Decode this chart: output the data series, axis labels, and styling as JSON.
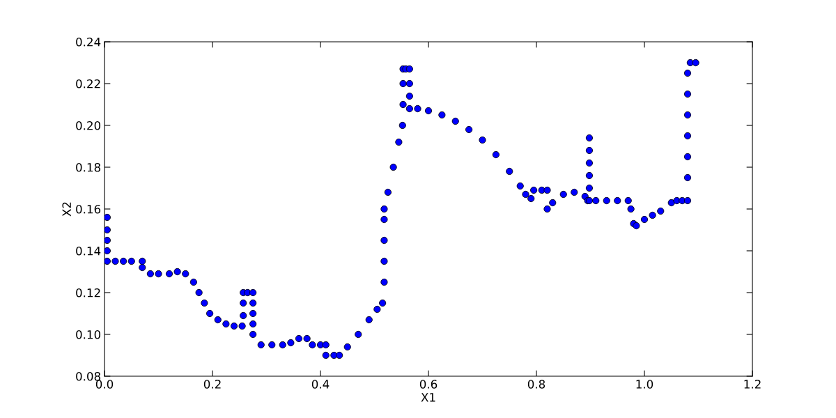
{
  "chart_data": {
    "type": "scatter",
    "xlabel": "X1",
    "ylabel": "X2",
    "x": [
      0.005,
      0.005,
      0.005,
      0.005,
      0.005,
      0.02,
      0.035,
      0.05,
      0.07,
      0.07,
      0.085,
      0.1,
      0.12,
      0.135,
      0.15,
      0.165,
      0.175,
      0.185,
      0.195,
      0.21,
      0.225,
      0.24,
      0.255,
      0.257,
      0.257,
      0.257,
      0.265,
      0.275,
      0.275,
      0.275,
      0.275,
      0.275,
      0.29,
      0.31,
      0.33,
      0.345,
      0.36,
      0.375,
      0.385,
      0.4,
      0.41,
      0.41,
      0.425,
      0.435,
      0.45,
      0.47,
      0.49,
      0.505,
      0.515,
      0.518,
      0.518,
      0.518,
      0.518,
      0.518,
      0.525,
      0.535,
      0.545,
      0.552,
      0.553,
      0.553,
      0.553,
      0.558,
      0.565,
      0.565,
      0.565,
      0.565,
      0.58,
      0.6,
      0.625,
      0.65,
      0.675,
      0.7,
      0.725,
      0.75,
      0.77,
      0.78,
      0.79,
      0.795,
      0.81,
      0.82,
      0.82,
      0.83,
      0.85,
      0.87,
      0.89,
      0.895,
      0.898,
      0.898,
      0.898,
      0.898,
      0.898,
      0.898,
      0.91,
      0.93,
      0.95,
      0.97,
      0.975,
      0.98,
      0.985,
      1.0,
      1.015,
      1.03,
      1.05,
      1.06,
      1.07,
      1.08,
      1.08,
      1.08,
      1.08,
      1.08,
      1.08,
      1.08,
      1.085,
      1.095
    ],
    "values": [
      0.156,
      0.15,
      0.145,
      0.14,
      0.135,
      0.135,
      0.135,
      0.135,
      0.135,
      0.132,
      0.129,
      0.129,
      0.129,
      0.13,
      0.129,
      0.125,
      0.12,
      0.115,
      0.11,
      0.107,
      0.105,
      0.104,
      0.104,
      0.109,
      0.115,
      0.12,
      0.12,
      0.12,
      0.115,
      0.11,
      0.105,
      0.1,
      0.095,
      0.095,
      0.095,
      0.096,
      0.098,
      0.098,
      0.095,
      0.095,
      0.095,
      0.09,
      0.09,
      0.09,
      0.094,
      0.1,
      0.107,
      0.112,
      0.115,
      0.125,
      0.135,
      0.145,
      0.155,
      0.16,
      0.168,
      0.18,
      0.192,
      0.2,
      0.21,
      0.22,
      0.227,
      0.227,
      0.227,
      0.22,
      0.214,
      0.208,
      0.208,
      0.207,
      0.205,
      0.202,
      0.198,
      0.193,
      0.186,
      0.178,
      0.171,
      0.167,
      0.165,
      0.169,
      0.169,
      0.169,
      0.16,
      0.163,
      0.167,
      0.168,
      0.166,
      0.164,
      0.17,
      0.176,
      0.182,
      0.188,
      0.194,
      0.164,
      0.164,
      0.164,
      0.164,
      0.164,
      0.16,
      0.153,
      0.152,
      0.155,
      0.157,
      0.159,
      0.163,
      0.164,
      0.164,
      0.164,
      0.175,
      0.185,
      0.195,
      0.205,
      0.215,
      0.225,
      0.23,
      0.23
    ],
    "color": "#0000ff",
    "marker": "circle",
    "grid": false,
    "xlim": [
      0.0,
      1.2
    ],
    "ylim": [
      0.08,
      0.24
    ],
    "xticks": [
      {
        "value": 0.0,
        "label": "0.0"
      },
      {
        "value": 0.2,
        "label": "0.2"
      },
      {
        "value": 0.4,
        "label": "0.4"
      },
      {
        "value": 0.6,
        "label": "0.6"
      },
      {
        "value": 0.8,
        "label": "0.8"
      },
      {
        "value": 1.0,
        "label": "1.0"
      },
      {
        "value": 1.2,
        "label": "1.2"
      }
    ],
    "yticks": [
      {
        "value": 0.08,
        "label": "0.08"
      },
      {
        "value": 0.1,
        "label": "0.10"
      },
      {
        "value": 0.12,
        "label": "0.12"
      },
      {
        "value": 0.14,
        "label": "0.14"
      },
      {
        "value": 0.16,
        "label": "0.16"
      },
      {
        "value": 0.18,
        "label": "0.18"
      },
      {
        "value": 0.2,
        "label": "0.20"
      },
      {
        "value": 0.22,
        "label": "0.22"
      },
      {
        "value": 0.24,
        "label": "0.24"
      }
    ]
  }
}
